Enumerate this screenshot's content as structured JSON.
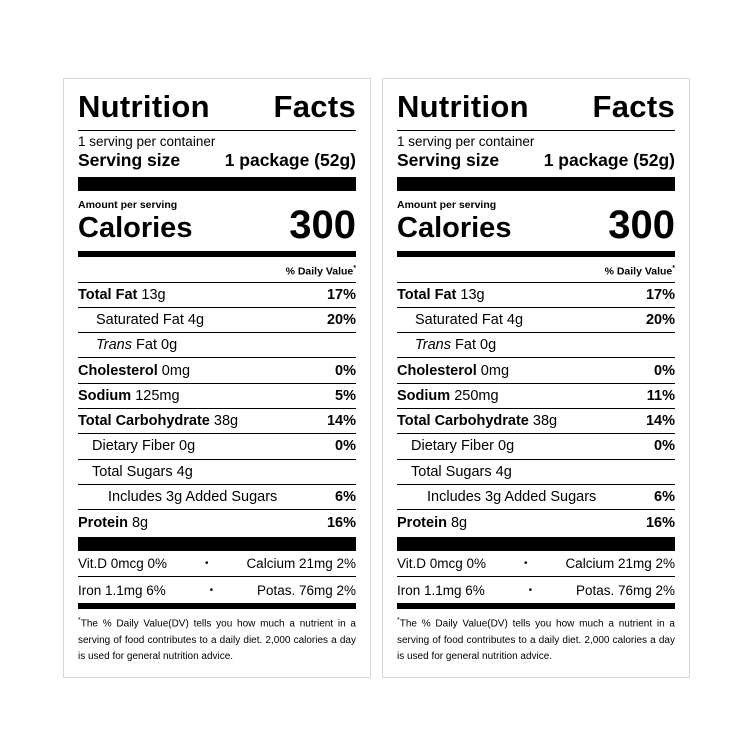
{
  "labels": [
    {
      "title_word1": "Nutrition",
      "title_word2": "Facts",
      "servings_per_container": "1 serving per container",
      "serving_size_label": "Serving size",
      "serving_size_value": "1 package (52g)",
      "amount_per_serving": "Amount per serving",
      "calories_label": "Calories",
      "calories_value": "300",
      "daily_value_header": "% Daily Value",
      "daily_value_asterisk": "*",
      "total_fat": {
        "name": "Total Fat",
        "amount": "13g",
        "dv": "17%"
      },
      "saturated_fat": {
        "name": "Saturated Fat",
        "amount": "4g",
        "dv": "20%"
      },
      "trans_fat": {
        "name_italic": "Trans",
        "name": "Fat",
        "amount": "0g"
      },
      "cholesterol": {
        "name": "Cholesterol",
        "amount": "0mg",
        "dv": "0%"
      },
      "sodium": {
        "name": "Sodium",
        "amount": "125mg",
        "dv": "5%"
      },
      "total_carbohydrate": {
        "name": "Total Carbohydrate",
        "amount": "38g",
        "dv": "14%"
      },
      "dietary_fiber": {
        "name": "Dietary Fiber",
        "amount": "0g",
        "dv": "0%"
      },
      "total_sugars": {
        "name": "Total Sugars",
        "amount": "4g"
      },
      "added_sugars": {
        "text": "Includes 3g Added Sugars",
        "dv": "6%"
      },
      "protein": {
        "name": "Protein",
        "amount": "8g",
        "dv": "16%"
      },
      "vitamin_d": "Vit.D 0mcg 0%",
      "calcium": "Calcium 21mg 2%",
      "iron": "Iron 1.1mg 6%",
      "potassium": "Potas. 76mg 2%",
      "dot": "•",
      "footnote_asterisk": "*",
      "footnote": "The % Daily Value(DV) tells you how much a nutrient in a serving of food contributes to a daily diet. 2,000 calories a day is used for general nutrition advice."
    },
    {
      "title_word1": "Nutrition",
      "title_word2": "Facts",
      "servings_per_container": "1 serving per container",
      "serving_size_label": "Serving size",
      "serving_size_value": "1 package (52g)",
      "amount_per_serving": "Amount per serving",
      "calories_label": "Calories",
      "calories_value": "300",
      "daily_value_header": "% Daily Value",
      "daily_value_asterisk": "*",
      "total_fat": {
        "name": "Total Fat",
        "amount": "13g",
        "dv": "17%"
      },
      "saturated_fat": {
        "name": "Saturated Fat",
        "amount": "4g",
        "dv": "20%"
      },
      "trans_fat": {
        "name_italic": "Trans",
        "name": "Fat",
        "amount": "0g"
      },
      "cholesterol": {
        "name": "Cholesterol",
        "amount": "0mg",
        "dv": "0%"
      },
      "sodium": {
        "name": "Sodium",
        "amount": "250mg",
        "dv": "11%"
      },
      "total_carbohydrate": {
        "name": "Total Carbohydrate",
        "amount": "38g",
        "dv": "14%"
      },
      "dietary_fiber": {
        "name": "Dietary Fiber",
        "amount": "0g",
        "dv": "0%"
      },
      "total_sugars": {
        "name": "Total Sugars",
        "amount": "4g"
      },
      "added_sugars": {
        "text": "Includes 3g Added Sugars",
        "dv": "6%"
      },
      "protein": {
        "name": "Protein",
        "amount": "8g",
        "dv": "16%"
      },
      "vitamin_d": "Vit.D 0mcg 0%",
      "calcium": "Calcium 21mg 2%",
      "iron": "Iron 1.1mg 6%",
      "potassium": "Potas. 76mg 2%",
      "dot": "•",
      "footnote_asterisk": "*",
      "footnote": "The % Daily Value(DV) tells you how much a nutrient in a serving of food contributes to a daily diet. 2,000 calories a day is used for general nutrition advice."
    }
  ]
}
